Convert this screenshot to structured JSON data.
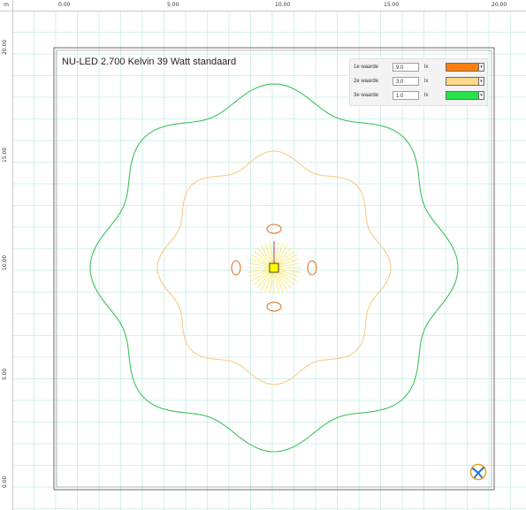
{
  "ruler": {
    "unit": "m",
    "x_labels": [
      "0.00",
      "5.00",
      "10.00",
      "15.00",
      "20.00"
    ],
    "y_labels": [
      "20.00",
      "15.00",
      "10.00",
      "5.00",
      "0.00"
    ]
  },
  "plan": {
    "title": "NU-LED 2.700 Kelvin 39 Watt standaard"
  },
  "legend": {
    "rows": [
      {
        "label": "1e waarde",
        "value": "9.0",
        "unit": "lx",
        "color": "#ff7f0e",
        "line_color": "#e07020"
      },
      {
        "label": "2e waarde",
        "value": "3.0",
        "unit": "lx",
        "color": "#ffd98a",
        "line_color": "#f3c97a"
      },
      {
        "label": "3e waarde",
        "value": "1.0",
        "unit": "lx",
        "color": "#27e34a",
        "line_color": "#3cc25a"
      }
    ]
  },
  "colors": {
    "grid": "#c9ece6",
    "room_border": "#6a6a6a",
    "fixture_fill": "#ffff00",
    "fixture_rays": "#f5e868"
  },
  "icons": {
    "dropdown": "chevron-down-icon",
    "logo": "app-logo-icon"
  }
}
